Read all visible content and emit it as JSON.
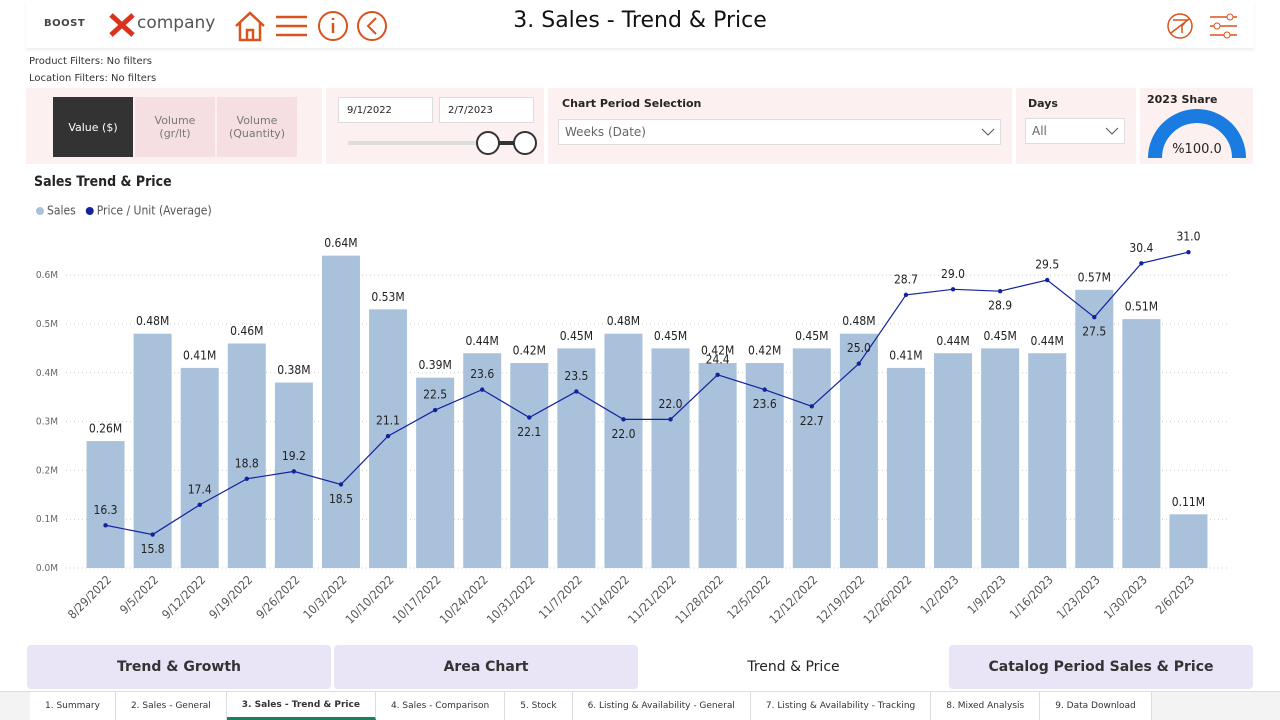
{
  "header": {
    "logo_left": "BOOST",
    "logo_right": "company",
    "title": "3. Sales - Trend & Price"
  },
  "filters": [
    "Product Filters: No filters",
    "Location Filters: No filters"
  ],
  "measure_buttons": [
    "Value ($)",
    "Volume (gr/lt)",
    "Volume (Quantity)"
  ],
  "date_range": {
    "start": "9/1/2022",
    "end": "2/7/2023"
  },
  "period_selection": {
    "label": "Chart Period Selection",
    "value": "Weeks (Date)"
  },
  "days": {
    "label": "Days",
    "value": "All"
  },
  "share": {
    "title": "2023 Share",
    "value": "%100.0"
  },
  "chart_data": {
    "type": "bar",
    "title": "Sales Trend & Price",
    "categories": [
      "8/29/2022",
      "9/5/2022",
      "9/12/2022",
      "9/19/2022",
      "9/26/2022",
      "10/3/2022",
      "10/10/2022",
      "10/17/2022",
      "10/24/2022",
      "10/31/2022",
      "11/7/2022",
      "11/14/2022",
      "11/21/2022",
      "11/28/2022",
      "12/5/2022",
      "12/12/2022",
      "12/19/2022",
      "12/26/2022",
      "1/2/2023",
      "1/9/2023",
      "1/16/2023",
      "1/23/2023",
      "1/30/2023",
      "2/6/2023"
    ],
    "series": [
      {
        "name": "Sales",
        "type": "bar",
        "color": "#a9c1da",
        "values": [
          0.26,
          0.48,
          0.41,
          0.46,
          0.38,
          0.64,
          0.53,
          0.39,
          0.44,
          0.42,
          0.45,
          0.48,
          0.45,
          0.42,
          0.42,
          0.45,
          0.48,
          0.41,
          0.44,
          0.45,
          0.44,
          0.57,
          0.51,
          0.11
        ],
        "value_labels": [
          "0.26M",
          "0.48M",
          "0.41M",
          "0.46M",
          "0.38M",
          "0.64M",
          "0.53M",
          "0.39M",
          "0.44M",
          "0.42M",
          "0.45M",
          "0.48M",
          "0.45M",
          "0.42M",
          "0.42M",
          "0.45M",
          "0.48M",
          "0.41M",
          "0.44M",
          "0.45M",
          "0.44M",
          "0.57M",
          "0.51M",
          "0.11M"
        ]
      },
      {
        "name": "Price / Unit (Average)",
        "type": "line",
        "axis": "y2",
        "color": "#12239e",
        "values": [
          16.3,
          15.8,
          17.4,
          18.8,
          19.2,
          18.5,
          21.1,
          22.5,
          23.6,
          22.1,
          23.5,
          22.0,
          22.0,
          24.4,
          23.6,
          22.7,
          25.0,
          28.7,
          29.0,
          28.9,
          29.5,
          27.5,
          30.4,
          31.0
        ],
        "value_labels": [
          "16.3",
          "15.8",
          "17.4",
          "18.8",
          "19.2",
          "18.5",
          "21.1",
          "22.5",
          "23.6",
          "22.1",
          "23.5",
          "22.0",
          "22.0",
          "24.4",
          "23.6",
          "22.7",
          "25.0",
          "28.7",
          "29.0",
          "28.9",
          "29.5",
          "27.5",
          "30.4",
          "31.0"
        ]
      }
    ],
    "ylim": [
      0,
      0.67
    ],
    "yticks": [
      {
        "value": 0,
        "label": "0.0M"
      },
      {
        "value": 0.1,
        "label": "0.1M"
      },
      {
        "value": 0.2,
        "label": "0.2M"
      },
      {
        "value": 0.3,
        "label": "0.3M"
      },
      {
        "value": 0.4,
        "label": "0.4M"
      },
      {
        "value": 0.5,
        "label": "0.5M"
      },
      {
        "value": 0.6,
        "label": "0.6M"
      }
    ],
    "y2lim": [
      14,
      31.6
    ],
    "grid": true,
    "legend": "top-left"
  },
  "nav_buttons": [
    "Trend & Growth",
    "Area Chart",
    "Trend & Price",
    "Catalog Period Sales & Price"
  ],
  "page_tabs": [
    "1. Summary",
    "2. Sales - General",
    "3. Sales - Trend & Price",
    "4. Sales - Comparison",
    "5. Stock",
    "6. Listing & Availability - General",
    "7. Listing & Availability - Tracking",
    "8. Mixed Analysis",
    "9. Data Download"
  ]
}
